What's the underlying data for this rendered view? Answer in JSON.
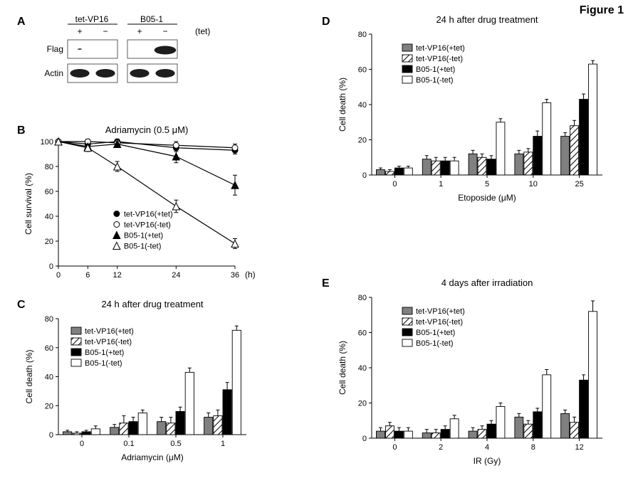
{
  "figure_number": "Figure 1",
  "panel_labels": {
    "A": "A",
    "B": "B",
    "C": "C",
    "D": "D",
    "E": "E"
  },
  "panelA": {
    "col_labels": [
      "tet-VP16",
      "B05-1"
    ],
    "plus_minus": [
      "+",
      "−",
      "+",
      "−"
    ],
    "tet_label": "(tet)",
    "row_labels": [
      "Flag",
      "Actin"
    ],
    "blot_bg": "#ffffff",
    "band_dark": "#1d1d1d",
    "band_mid": "#4b4b4b",
    "lane_border": "#333333"
  },
  "panelB": {
    "type": "line",
    "title": "Adriamycin (0.5 μM)",
    "xlabel": "(h)",
    "ylabel": "Cell survival (%)",
    "xticks": [
      0,
      6,
      12,
      24,
      36
    ],
    "yticks": [
      0,
      20,
      40,
      60,
      80,
      100
    ],
    "ylim": [
      0,
      100
    ],
    "xlim": [
      0,
      36
    ],
    "series": [
      {
        "name": "tet-VP16(+tet)",
        "marker": "circle",
        "fill": "#000000",
        "stroke": "#000000",
        "values": [
          [
            0,
            100
          ],
          [
            6,
            98
          ],
          [
            12,
            100
          ],
          [
            24,
            95
          ],
          [
            36,
            93
          ]
        ],
        "err": [
          0,
          2,
          2,
          3,
          3
        ]
      },
      {
        "name": "tet-VP16(-tet)",
        "marker": "circle",
        "fill": "#ffffff",
        "stroke": "#000000",
        "values": [
          [
            0,
            100
          ],
          [
            6,
            100
          ],
          [
            12,
            99
          ],
          [
            24,
            97
          ],
          [
            36,
            95
          ]
        ],
        "err": [
          0,
          2,
          2,
          3,
          3
        ]
      },
      {
        "name": "B05-1(+tet)",
        "marker": "triangle",
        "fill": "#000000",
        "stroke": "#000000",
        "values": [
          [
            0,
            100
          ],
          [
            6,
            96
          ],
          [
            12,
            98
          ],
          [
            24,
            88
          ],
          [
            36,
            65
          ]
        ],
        "err": [
          0,
          2,
          2,
          5,
          8
        ]
      },
      {
        "name": "B05-1(-tet)",
        "marker": "triangle",
        "fill": "#ffffff",
        "stroke": "#000000",
        "values": [
          [
            0,
            100
          ],
          [
            6,
            95
          ],
          [
            12,
            80
          ],
          [
            24,
            48
          ],
          [
            36,
            18
          ]
        ],
        "err": [
          0,
          3,
          4,
          5,
          4
        ]
      }
    ],
    "axis_color": "#000000",
    "tick_color": "#000000",
    "font_size": 11
  },
  "panelC": {
    "type": "bar",
    "title": "24 h after drug treatment",
    "xlabel": "Adriamycin (μM)",
    "ylabel": "Cell death  (%)",
    "categories": [
      "0",
      "0.1",
      "0.5",
      "1"
    ],
    "yticks": [
      0,
      20,
      40,
      60,
      80
    ],
    "ylim": [
      0,
      80
    ],
    "series": [
      {
        "name": "tet-VP16(+tet)",
        "fill": "#808080",
        "stroke": "#000000",
        "pattern": "solid",
        "values": [
          2,
          5,
          9,
          12
        ],
        "err": [
          1,
          2,
          3,
          3
        ]
      },
      {
        "name": "tet-VP16(-tet)",
        "fill": "#ffffff",
        "stroke": "#000000",
        "pattern": "hatch",
        "values": [
          1,
          8,
          8,
          13
        ],
        "err": [
          1,
          5,
          4,
          4
        ]
      },
      {
        "name": "B05-1(+tet)",
        "fill": "#000000",
        "stroke": "#000000",
        "pattern": "solid",
        "values": [
          2,
          9,
          16,
          31
        ],
        "err": [
          1,
          3,
          3,
          5
        ]
      },
      {
        "name": "B05-1(-tet)",
        "fill": "#ffffff",
        "stroke": "#000000",
        "pattern": "solid",
        "values": [
          4,
          15,
          43,
          72
        ],
        "err": [
          2,
          2,
          3,
          3
        ]
      }
    ],
    "bar_width": 0.8,
    "font_size": 11
  },
  "panelD": {
    "type": "bar",
    "title": "24 h after drug treatment",
    "xlabel": "Etoposide (μM)",
    "ylabel": "Cell death (%)",
    "categories": [
      "0",
      "1",
      "5",
      "10",
      "25"
    ],
    "yticks": [
      0,
      20,
      40,
      60,
      80
    ],
    "ylim": [
      0,
      80
    ],
    "series": [
      {
        "name": "tet-VP16(+tet)",
        "fill": "#808080",
        "stroke": "#000000",
        "pattern": "solid",
        "values": [
          3,
          9,
          12,
          12,
          22
        ],
        "err": [
          1,
          2,
          2,
          2,
          2
        ]
      },
      {
        "name": "tet-VP16(-tet)",
        "fill": "#ffffff",
        "stroke": "#000000",
        "pattern": "hatch",
        "values": [
          2,
          8,
          10,
          13,
          28
        ],
        "err": [
          1,
          2,
          2,
          2,
          3
        ]
      },
      {
        "name": "B05-1(+tet)",
        "fill": "#000000",
        "stroke": "#000000",
        "pattern": "solid",
        "values": [
          4,
          8,
          9,
          22,
          43
        ],
        "err": [
          1,
          2,
          2,
          3,
          3
        ]
      },
      {
        "name": "B05-1(-tet)",
        "fill": "#ffffff",
        "stroke": "#000000",
        "pattern": "solid",
        "values": [
          4,
          8,
          30,
          41,
          63
        ],
        "err": [
          1,
          2,
          2,
          2,
          2
        ]
      }
    ],
    "bar_width": 0.8,
    "font_size": 11
  },
  "panelE": {
    "type": "bar",
    "title": "4 days after irradiation",
    "xlabel": "IR (Gy)",
    "ylabel": "Cell death (%)",
    "categories": [
      "0",
      "2",
      "4",
      "8",
      "12"
    ],
    "yticks": [
      0,
      20,
      40,
      60,
      80
    ],
    "ylim": [
      0,
      80
    ],
    "series": [
      {
        "name": "tet-VP16(+tet)",
        "fill": "#808080",
        "stroke": "#000000",
        "pattern": "solid",
        "values": [
          4,
          3,
          4,
          12,
          14
        ],
        "err": [
          2,
          2,
          2,
          2,
          2
        ]
      },
      {
        "name": "tet-VP16(-tet)",
        "fill": "#ffffff",
        "stroke": "#000000",
        "pattern": "hatch",
        "values": [
          7,
          3,
          5,
          8,
          9
        ],
        "err": [
          2,
          2,
          2,
          2,
          3
        ]
      },
      {
        "name": "B05-1(+tet)",
        "fill": "#000000",
        "stroke": "#000000",
        "pattern": "solid",
        "values": [
          4,
          5,
          8,
          15,
          33
        ],
        "err": [
          2,
          2,
          2,
          2,
          3
        ]
      },
      {
        "name": "B05-1(-tet)",
        "fill": "#ffffff",
        "stroke": "#000000",
        "pattern": "solid",
        "values": [
          4,
          11,
          18,
          36,
          72
        ],
        "err": [
          2,
          2,
          2,
          3,
          6
        ]
      }
    ],
    "bar_width": 0.8,
    "font_size": 11
  }
}
